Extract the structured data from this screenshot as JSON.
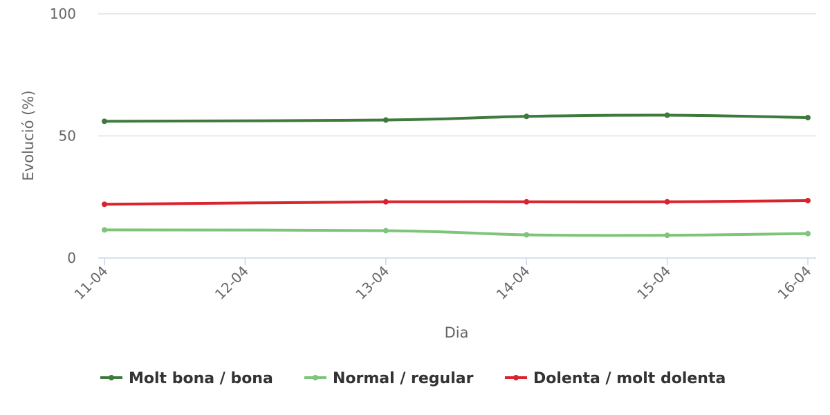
{
  "chart_data": {
    "type": "line",
    "title": "",
    "xlabel": "Dia",
    "ylabel": "Evolució (%)",
    "ylim": [
      0,
      100
    ],
    "yticks": [
      0,
      50,
      100
    ],
    "categories": [
      "11-04",
      "12-04",
      "13-04",
      "14-04",
      "15-04",
      "16-04"
    ],
    "grid": true,
    "legend_position": "bottom",
    "series": [
      {
        "name": "Molt bona / bona",
        "color": "#3f7a3d",
        "points": [
          [
            0,
            56.0
          ],
          [
            2,
            56.5
          ],
          [
            3,
            58.0
          ],
          [
            4,
            58.5
          ],
          [
            5,
            57.5
          ]
        ]
      },
      {
        "name": "Normal / regular",
        "color": "#7ec47a",
        "points": [
          [
            0,
            11.5
          ],
          [
            2,
            11.2
          ],
          [
            3,
            9.5
          ],
          [
            4,
            9.3
          ],
          [
            5,
            10.0
          ]
        ]
      },
      {
        "name": "Dolenta / molt dolenta",
        "color": "#d9232d",
        "points": [
          [
            0,
            22.0
          ],
          [
            2,
            23.0
          ],
          [
            3,
            23.0
          ],
          [
            4,
            23.0
          ],
          [
            5,
            23.5
          ]
        ]
      }
    ]
  }
}
